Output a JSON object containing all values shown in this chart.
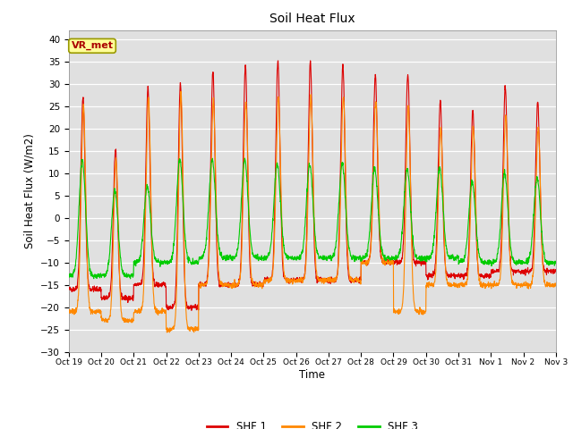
{
  "title": "Soil Heat Flux",
  "ylabel": "Soil Heat Flux (W/m2)",
  "xlabel": "Time",
  "ylim": [
    -30,
    42
  ],
  "yticks": [
    -30,
    -25,
    -20,
    -15,
    -10,
    -5,
    0,
    5,
    10,
    15,
    20,
    25,
    30,
    35,
    40
  ],
  "colors": {
    "SHF1": "#dd0000",
    "SHF2": "#ff8800",
    "SHF3": "#00cc00"
  },
  "legend_labels": [
    "SHF 1",
    "SHF 2",
    "SHF 3"
  ],
  "annotation_text": "VR_met",
  "annotation_color": "#aa0000",
  "annotation_bg": "#ffff99",
  "plot_bg": "#e0e0e0",
  "grid_color": "#ffffff",
  "n_days": 15,
  "tick_labels": [
    "Oct 19",
    "Oct 20",
    "Oct 21",
    "Oct 22",
    "Oct 23",
    "Oct 24",
    "Oct 25",
    "Oct 26",
    "Oct 27",
    "Oct 28",
    "Oct 29",
    "Oct 30",
    "Oct 31",
    "Nov 1",
    "Nov 2",
    "Nov 3"
  ],
  "shf1_amps": [
    27,
    15,
    29,
    30,
    33,
    34,
    35,
    35,
    34,
    32,
    32,
    26,
    24,
    29,
    26
  ],
  "shf1_night": [
    -16,
    -18,
    -15,
    -20,
    -15,
    -15,
    -14,
    -14,
    -14,
    -10,
    -10,
    -13,
    -13,
    -12,
    -12
  ],
  "shf2_amps": [
    25,
    13,
    27,
    28,
    26,
    26,
    27,
    27,
    27,
    26,
    25,
    20,
    20,
    23,
    20
  ],
  "shf2_night": [
    -21,
    -23,
    -21,
    -25,
    -15,
    -15,
    -14,
    -14,
    -14,
    -10,
    -21,
    -15,
    -15,
    -15,
    -15
  ],
  "shf3_amps": [
    13,
    6,
    7,
    13,
    13,
    13,
    12,
    12,
    12,
    11,
    11,
    11,
    8,
    10,
    9
  ],
  "shf3_night": [
    -13,
    -13,
    -10,
    -10,
    -9,
    -9,
    -9,
    -9,
    -9,
    -9,
    -9,
    -9,
    -10,
    -10,
    -10
  ]
}
